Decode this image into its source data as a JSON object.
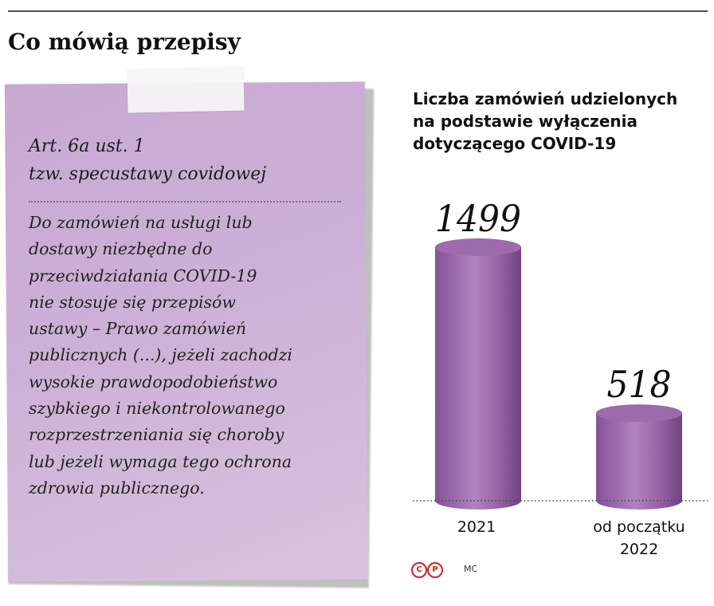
{
  "page": {
    "title": "Co mówią przepisy"
  },
  "note": {
    "heading_lines": [
      "Art. 6a ust. 1",
      "tzw. specustawy covidowej"
    ],
    "body_lines": [
      "Do zamówień na usługi lub",
      "dostawy niezbędne do",
      "przeciwdziałania COVID-19",
      "nie stosuje się przepisów",
      "ustawy – Prawo zamówień",
      "publicznych (...), jeżeli zachodzi",
      "wysokie prawdopodobieństwo",
      "szybkiego i niekontrolowanego",
      "rozprzestrzeniania się choroby",
      "lub jeżeli wymaga tego ochrona",
      "zdrowia publicznego."
    ]
  },
  "chart_data": {
    "type": "bar",
    "title_lines": [
      "Liczba zamówień udzielonych",
      "na podstawie wyłączenia",
      "dotyczącego COVID-19"
    ],
    "categories": [
      "2021",
      "od początku 2022"
    ],
    "category_label_lines": [
      [
        "2021"
      ],
      [
        "od początku",
        "2022"
      ]
    ],
    "values": [
      1499,
      518
    ],
    "data_labels": [
      "1499",
      "518"
    ],
    "colors": {
      "bar": "#9d6bab",
      "bar_light": "#c7a2d1",
      "bar_dark": "#6f4380",
      "baseline": "#444444"
    },
    "grid": false
  },
  "credits": {
    "icons": [
      "copyright-icon",
      "p-icon"
    ],
    "icon_glyphs": [
      "C",
      "P"
    ],
    "author": "MC"
  }
}
